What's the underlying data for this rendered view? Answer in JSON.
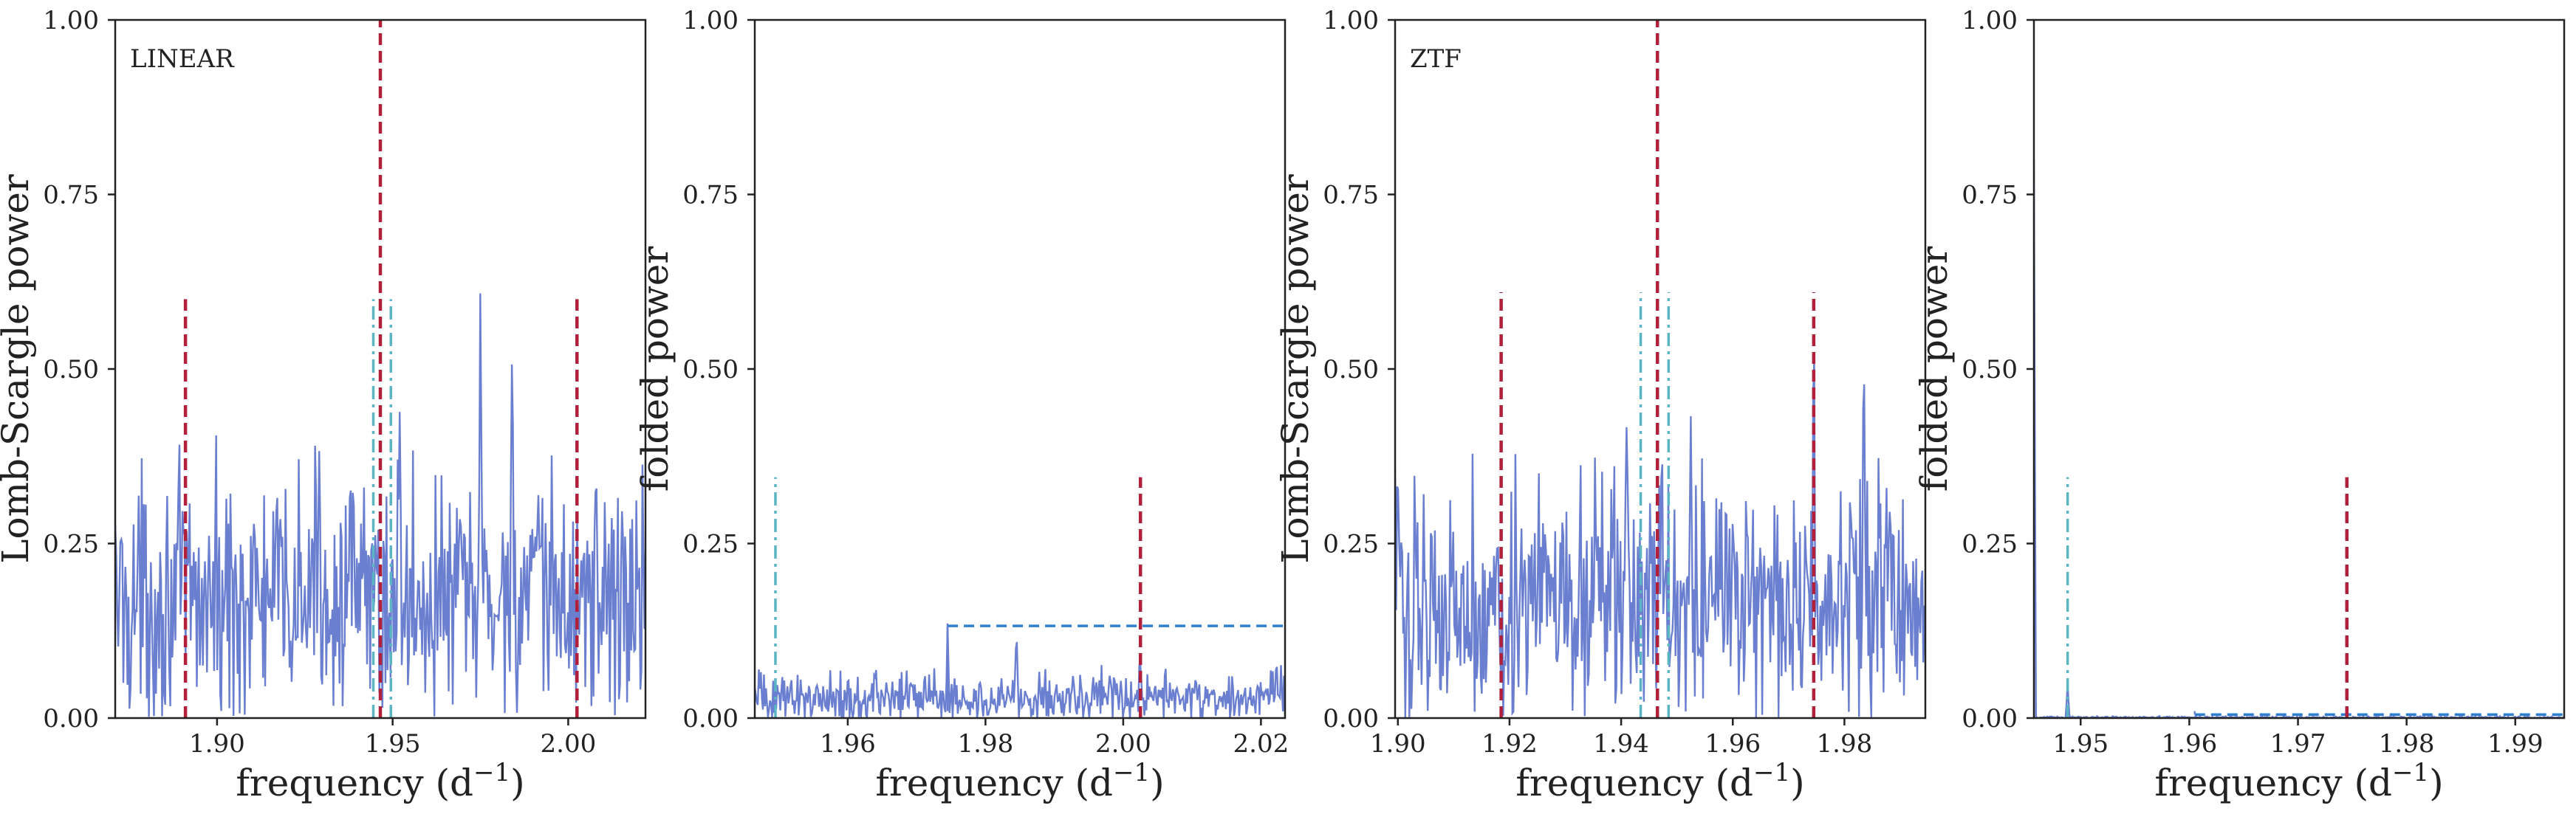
{
  "colors": {
    "series": "#6a7fcf",
    "red_marker": "#b0203a",
    "cyan_marker": "#5bb6c4",
    "blue_dashed": "#2f7fd0",
    "axes": "#222222"
  },
  "chart_data": [
    {
      "type": "line",
      "panel": "LINEAR periodogram",
      "annotation": "LINEAR",
      "xlabel_main": "frequency (d",
      "xlabel_sup": "−1",
      "xlabel_close": ")",
      "ylabel": "Lomb-Scargle power",
      "xlim": [
        1.871,
        2.022
      ],
      "ylim": [
        0,
        1
      ],
      "xticks": [
        1.9,
        1.95,
        2.0
      ],
      "xtick_labels": [
        "1.90",
        "1.95",
        "2.00"
      ],
      "yticks": [
        0,
        0.25,
        0.5,
        0.75,
        1.0
      ],
      "ytick_labels": [
        "0.00",
        "0.25",
        "0.50",
        "0.75",
        "1.00"
      ],
      "series_stats": {
        "baseline": 0.17,
        "spread": 0.085
      },
      "peaks": [
        [
          1.929,
          0.43
        ],
        [
          1.952,
          0.45
        ],
        [
          1.975,
          0.635
        ],
        [
          1.984,
          0.54
        ],
        [
          2.008,
          0.36
        ]
      ],
      "red_lines": [
        {
          "x": 1.891,
          "ymax": 0.6
        },
        {
          "x": 1.9465,
          "ymax": 1.0
        },
        {
          "x": 2.0025,
          "ymax": 0.6
        }
      ],
      "cyan_lines": [
        {
          "x": 1.9445,
          "ymax": 0.6
        },
        {
          "x": 1.9495,
          "ymax": 0.6
        }
      ],
      "hlines": []
    },
    {
      "type": "line",
      "panel": "LINEAR folded",
      "annotation": "",
      "xlabel_main": "frequency (d",
      "xlabel_sup": "−1",
      "xlabel_close": ")",
      "ylabel": "folded power",
      "xlim": [
        1.9465,
        2.0235
      ],
      "ylim": [
        0,
        1
      ],
      "xticks": [
        1.96,
        1.98,
        2.0,
        2.02
      ],
      "xtick_labels": [
        "1.96",
        "1.98",
        "2.00",
        "2.02"
      ],
      "yticks": [
        0,
        0.25,
        0.5,
        0.75,
        1.0
      ],
      "ytick_labels": [
        "0.00",
        "0.25",
        "0.50",
        "0.75",
        "1.00"
      ],
      "series_stats": {
        "baseline": 0.03,
        "spread": 0.018
      },
      "peaks": [
        [
          1.9745,
          0.14
        ],
        [
          1.9845,
          0.13
        ],
        [
          2.0025,
          0.085
        ]
      ],
      "red_lines": [
        {
          "x": 2.0025,
          "ymax": 0.345
        }
      ],
      "cyan_lines": [
        {
          "x": 1.9495,
          "ymax": 0.345
        }
      ],
      "hlines": [
        {
          "y": 0.132,
          "x_start": 1.9745,
          "x_end": 2.0235
        }
      ]
    },
    {
      "type": "line",
      "panel": "ZTF periodogram",
      "annotation": "ZTF",
      "xlabel_main": "frequency (d",
      "xlabel_sup": "−1",
      "xlabel_close": ")",
      "ylabel": "Lomb-Scargle power",
      "xlim": [
        1.8995,
        1.9945
      ],
      "ylim": [
        0,
        1
      ],
      "xticks": [
        1.9,
        1.92,
        1.94,
        1.96,
        1.98
      ],
      "xtick_labels": [
        "1.90",
        "1.92",
        "1.94",
        "1.96",
        "1.98"
      ],
      "yticks": [
        0,
        0.25,
        0.5,
        0.75,
        1.0
      ],
      "ytick_labels": [
        "0.00",
        "0.25",
        "0.50",
        "0.75",
        "1.00"
      ],
      "series_stats": {
        "baseline": 0.17,
        "spread": 0.085
      },
      "peaks": [
        [
          1.9,
          0.36
        ],
        [
          1.9745,
          0.635
        ],
        [
          1.9835,
          0.54
        ],
        [
          1.941,
          0.44
        ],
        [
          1.9525,
          0.45
        ]
      ],
      "red_lines": [
        {
          "x": 1.9185,
          "ymax": 0.61
        },
        {
          "x": 1.9465,
          "ymax": 1.0
        },
        {
          "x": 1.9745,
          "ymax": 0.61
        }
      ],
      "cyan_lines": [
        {
          "x": 1.9435,
          "ymax": 0.61
        },
        {
          "x": 1.9485,
          "ymax": 0.61
        }
      ],
      "hlines": []
    },
    {
      "type": "line",
      "panel": "ZTF folded",
      "annotation": "",
      "xlabel_main": "frequency (d",
      "xlabel_sup": "−1",
      "xlabel_close": ")",
      "ylabel": "folded power",
      "xlim": [
        1.9457,
        1.9945
      ],
      "ylim": [
        0,
        1
      ],
      "xticks": [
        1.95,
        1.96,
        1.97,
        1.98,
        1.99
      ],
      "xtick_labels": [
        "1.95",
        "1.96",
        "1.97",
        "1.98",
        "1.99"
      ],
      "yticks": [
        0,
        0.25,
        0.5,
        0.75,
        1.0
      ],
      "ytick_labels": [
        "0.00",
        "0.25",
        "0.50",
        "0.75",
        "1.00"
      ],
      "series_stats": {
        "baseline": 0.001,
        "spread": 0.0008
      },
      "peaks": [
        [
          1.9457,
          0.8
        ],
        [
          1.9488,
          0.05
        ]
      ],
      "red_lines": [
        {
          "x": 1.9745,
          "ymax": 0.345
        }
      ],
      "cyan_lines": [
        {
          "x": 1.9488,
          "ymax": 0.345
        }
      ],
      "hlines": [
        {
          "y": 0.005,
          "x_start": 1.9605,
          "x_end": 1.9945
        }
      ]
    }
  ]
}
